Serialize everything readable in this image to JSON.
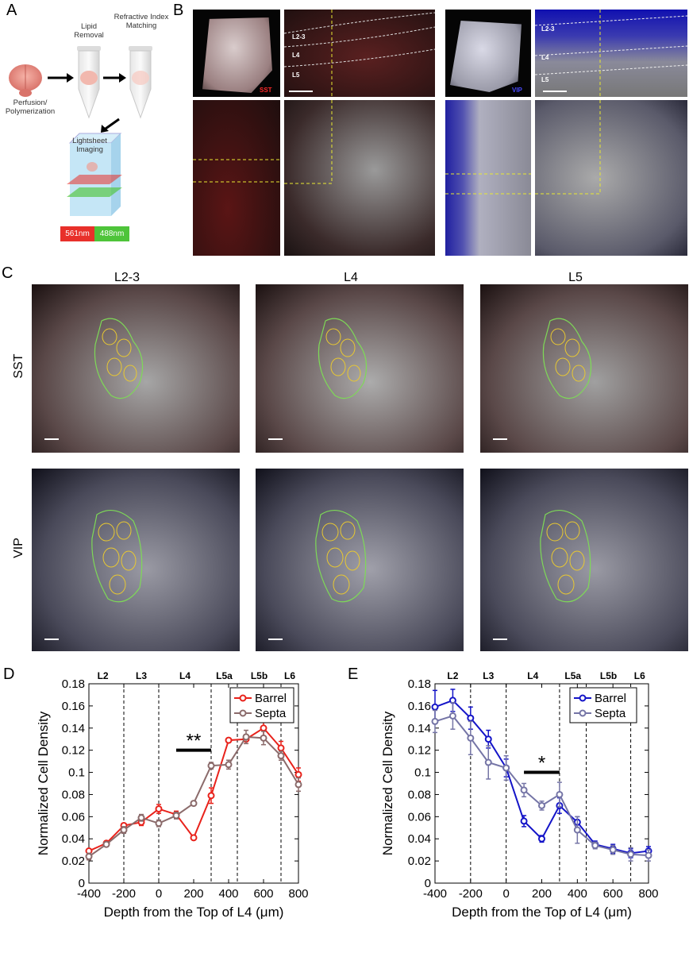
{
  "panel_letters": {
    "a": "A",
    "b": "B",
    "c": "C",
    "d": "D",
    "e": "E"
  },
  "panel_a": {
    "steps": [
      "Lipid Removal",
      "Refractive Index Matching",
      "Perfusion/ Polymerization",
      "Lightsheet Imaging"
    ],
    "lasers": [
      "561nm",
      "488nm"
    ],
    "colors": {
      "red": "#e8302a",
      "green": "#4ec43a",
      "chamber": "#bfe3f5"
    }
  },
  "panel_b": {
    "sst_label": "SST",
    "vip_label": "VIP",
    "layers": [
      "L2-3",
      "L4",
      "L5"
    ]
  },
  "panel_c": {
    "columns": [
      "L2-3",
      "L4",
      "L5"
    ],
    "rows": [
      "SST",
      "VIP"
    ]
  },
  "chart_data": [
    {
      "type": "line",
      "panel": "D",
      "title": "",
      "xlabel": "Depth from the Top of L4 (μm)",
      "ylabel": "Normalized Cell Density",
      "xlim": [
        -400,
        800
      ],
      "ylim": [
        0,
        0.18
      ],
      "xticks": [
        "-400",
        "-200",
        "0",
        "200",
        "400",
        "600",
        "800"
      ],
      "yticks": [
        "0",
        "0.02",
        "0.04",
        "0.06",
        "0.08",
        "0.1",
        "0.12",
        "0.14",
        "0.16",
        "0.18"
      ],
      "layer_boundaries": [
        -200,
        0,
        300,
        450,
        700
      ],
      "layer_labels": [
        {
          "text": "L2",
          "x": -320
        },
        {
          "text": "L3",
          "x": -100
        },
        {
          "text": "L4",
          "x": 150
        },
        {
          "text": "L5a",
          "x": 375
        },
        {
          "text": "L5b",
          "x": 575
        },
        {
          "text": "L6",
          "x": 750
        }
      ],
      "significance": {
        "text": "**",
        "x_from": 100,
        "x_to": 300,
        "y": 0.12
      },
      "x": [
        -400,
        -300,
        -200,
        -100,
        0,
        100,
        200,
        300,
        400,
        500,
        600,
        700,
        800
      ],
      "series": [
        {
          "name": "Barrel",
          "color": "#e8221b",
          "values": [
            0.029,
            0.036,
            0.052,
            0.055,
            0.067,
            0.062,
            0.041,
            0.079,
            0.129,
            0.13,
            0.14,
            0.122,
            0.098
          ],
          "errors": [
            0.002,
            0.002,
            0.002,
            0.003,
            0.004,
            0.003,
            0.002,
            0.007,
            0.002,
            0.004,
            0.009,
            0.006,
            0.006
          ]
        },
        {
          "name": "Septa",
          "color": "#8b6b6b",
          "values": [
            0.024,
            0.035,
            0.048,
            0.059,
            0.054,
            0.061,
            0.072,
            0.106,
            0.107,
            0.132,
            0.131,
            0.115,
            0.089
          ],
          "errors": [
            0.003,
            0.002,
            0.003,
            0.003,
            0.003,
            0.003,
            0.002,
            0.003,
            0.004,
            0.006,
            0.006,
            0.004,
            0.006
          ]
        }
      ]
    },
    {
      "type": "line",
      "panel": "E",
      "title": "",
      "xlabel": "Depth from the Top of L4 (μm)",
      "ylabel": "Normalized Cell Density",
      "xlim": [
        -400,
        800
      ],
      "ylim": [
        0,
        0.18
      ],
      "xticks": [
        "-400",
        "-200",
        "0",
        "200",
        "400",
        "600",
        "800"
      ],
      "yticks": [
        "0",
        "0.02",
        "0.04",
        "0.06",
        "0.08",
        "0.1",
        "0.12",
        "0.14",
        "0.16",
        "0.18"
      ],
      "layer_boundaries": [
        -200,
        0,
        300,
        450,
        700
      ],
      "layer_labels": [
        {
          "text": "L2",
          "x": -300
        },
        {
          "text": "L3",
          "x": -100
        },
        {
          "text": "L4",
          "x": 150
        },
        {
          "text": "L5a",
          "x": 375
        },
        {
          "text": "L5b",
          "x": 575
        },
        {
          "text": "L6",
          "x": 750
        }
      ],
      "significance": {
        "text": "*",
        "x_from": 100,
        "x_to": 300,
        "y": 0.1
      },
      "x": [
        -400,
        -300,
        -200,
        -100,
        0,
        100,
        200,
        300,
        400,
        500,
        600,
        700,
        800
      ],
      "series": [
        {
          "name": "Barrel",
          "color": "#1414c8",
          "values": [
            0.159,
            0.165,
            0.149,
            0.13,
            0.104,
            0.056,
            0.04,
            0.07,
            0.055,
            0.035,
            0.031,
            0.027,
            0.029
          ],
          "errors": [
            0.015,
            0.01,
            0.01,
            0.008,
            0.008,
            0.005,
            0.003,
            0.007,
            0.005,
            0.003,
            0.004,
            0.004,
            0.004
          ]
        },
        {
          "name": "Septa",
          "color": "#7575a6",
          "values": [
            0.146,
            0.151,
            0.131,
            0.109,
            0.104,
            0.084,
            0.07,
            0.08,
            0.048,
            0.034,
            0.03,
            0.026,
            0.025
          ],
          "errors": [
            0.01,
            0.012,
            0.015,
            0.015,
            0.011,
            0.006,
            0.004,
            0.011,
            0.012,
            0.003,
            0.004,
            0.006,
            0.005
          ]
        }
      ]
    }
  ]
}
